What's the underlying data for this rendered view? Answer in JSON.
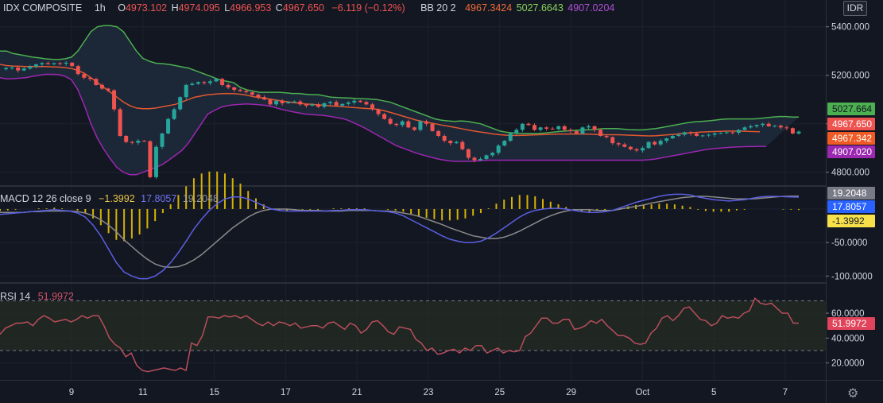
{
  "header": {
    "symbol": "IDX COMPOSITE",
    "interval": "1h",
    "o_label": "O",
    "o_value": "4973.102",
    "h_label": "H",
    "h_value": "4974.095",
    "l_label": "L",
    "l_value": "4966.953",
    "c_label": "C",
    "c_value": "4967.650",
    "change": "−6.119 (−0.12%)",
    "bb_label": "BB 20 2",
    "bb_basis": "4967.3424",
    "bb_upper": "5027.6643",
    "bb_lower": "4907.0204",
    "currency_button": "IDR"
  },
  "macd_legend": {
    "label": "MACD 12 26 close 9",
    "hist": "−1.3992",
    "macd": "17.8057",
    "signal": "19.2048"
  },
  "rsi_legend": {
    "label": "RSI 14",
    "value": "51.9972"
  },
  "price_scale_badges": {
    "upper": "5027.664",
    "close": "4967.650",
    "basis": "4967.342",
    "lower": "4907.020"
  },
  "macd_scale_badges": {
    "signal": "19.2048",
    "macd": "17.8057",
    "hist": "-1.3992"
  },
  "rsi_scale_badge": "51.9972",
  "colors": {
    "background": "#131722",
    "up": "#26a69a",
    "down": "#ef5350",
    "bb_upper": "#4caf50",
    "bb_basis": "#e0582f",
    "bb_lower": "#9c27b0",
    "macd_line": "#5b5fe0",
    "signal_line": "#8a8a8a",
    "hist": "#d4b106",
    "rsi": "#b84e5c"
  },
  "chart_data": [
    {
      "type": "candlestick",
      "title": "IDX COMPOSITE",
      "interval": "1h",
      "x_ticks": [
        "9",
        "11",
        "15",
        "17",
        "21",
        "23",
        "25",
        "29",
        "Oct",
        "5",
        "7"
      ],
      "y_ticks": [
        "4800.000",
        "5000.000",
        "5200.000",
        "5400.000"
      ],
      "ylim": [
        4750,
        5445
      ],
      "close_series": [
        5225,
        5230,
        5232,
        5220,
        5228,
        5236,
        5245,
        5250,
        5246,
        5250,
        5248,
        5252,
        5238,
        5205,
        5190,
        5185,
        5160,
        5145,
        5138,
        5060,
        4950,
        4925,
        4922,
        4930,
        4928,
        4780,
        4905,
        4960,
        5020,
        5060,
        5110,
        5160,
        5165,
        5172,
        5168,
        5175,
        5185,
        5160,
        5150,
        5140,
        5135,
        5130,
        5120,
        5110,
        5100,
        5080,
        5095,
        5085,
        5090,
        5092,
        5080,
        5075,
        5080,
        5070,
        5085,
        5090,
        5075,
        5082,
        5088,
        5095,
        5090,
        5080,
        5060,
        5040,
        5020,
        5000,
        4995,
        5010,
        4985,
        4975,
        5010,
        5000,
        4970,
        4950,
        4930,
        4920,
        4925,
        4895,
        4860,
        4850,
        4855,
        4870,
        4880,
        4910,
        4930,
        4960,
        4975,
        5000,
        4995,
        4975,
        4985,
        4980,
        4978,
        4990,
        4975,
        4970,
        4960,
        4985,
        4990,
        4975,
        4950,
        4945,
        4920,
        4915,
        4905,
        4895,
        4890,
        4900,
        4925,
        4915,
        4930,
        4940,
        4950,
        4955,
        4965,
        4960,
        4950,
        4952,
        4955,
        4960,
        4962,
        4965,
        4963,
        4975,
        4985,
        4990,
        4995,
        5000,
        4990,
        4992,
        4985,
        4982,
        4960,
        4967.65
      ],
      "bb_upper": [
        5300,
        5300,
        5290,
        5285,
        5280,
        5275,
        5272,
        5268,
        5266,
        5265,
        5268,
        5275,
        5300,
        5340,
        5380,
        5400,
        5405,
        5405,
        5400,
        5380,
        5340,
        5300,
        5270,
        5258,
        5250,
        5248,
        5245,
        5240,
        5235,
        5230,
        5220,
        5210,
        5200,
        5190,
        5180,
        5175,
        5170,
        5150,
        5140,
        5135,
        5130,
        5130,
        5130,
        5130,
        5128,
        5125,
        5125,
        5122,
        5120,
        5120,
        5115,
        5110,
        5108,
        5107,
        5106,
        5104,
        5103,
        5102,
        5100,
        5095,
        5090,
        5080,
        5070,
        5060,
        5050,
        5040,
        5030,
        5020,
        5015,
        5012,
        5010,
        5012,
        5010,
        5005,
        5000,
        4990,
        4980,
        4970,
        4965,
        4962,
        4960,
        4960,
        4960,
        4960,
        4962,
        4965,
        4968,
        4970,
        4972,
        4974,
        4975,
        4976,
        4978,
        4980,
        4980,
        4980,
        4978,
        4976,
        4975,
        4975,
        4978,
        4980,
        4985,
        4990,
        4995,
        5000,
        5005,
        5008,
        5010,
        5012,
        5015,
        5018,
        5020,
        5020,
        5020,
        5020,
        5020,
        5022,
        5025,
        5028,
        5030,
        5030,
        5028,
        5027.66
      ],
      "bb_basis": [
        5245,
        5240,
        5238,
        5237,
        5236,
        5236,
        5236,
        5236,
        5235,
        5234,
        5232,
        5228,
        5220,
        5208,
        5190,
        5170,
        5150,
        5130,
        5110,
        5090,
        5075,
        5065,
        5062,
        5062,
        5065,
        5070,
        5075,
        5080,
        5090,
        5100,
        5110,
        5115,
        5120,
        5122,
        5124,
        5125,
        5124,
        5122,
        5118,
        5112,
        5108,
        5104,
        5100,
        5096,
        5092,
        5088,
        5085,
        5082,
        5080,
        5078,
        5076,
        5074,
        5072,
        5070,
        5068,
        5066,
        5064,
        5062,
        5060,
        5055,
        5048,
        5040,
        5032,
        5024,
        5016,
        5010,
        5005,
        5000,
        4995,
        4990,
        4985,
        4980,
        4975,
        4970,
        4966,
        4962,
        4958,
        4955,
        4953,
        4952,
        4952,
        4953,
        4954,
        4955,
        4956,
        4957,
        4958,
        4958,
        4958,
        4958,
        4958,
        4957,
        4956,
        4955,
        4955,
        4955,
        4954,
        4953,
        4952,
        4951,
        4950,
        4951,
        4953,
        4955,
        4957,
        4960,
        4962,
        4964,
        4966,
        4967,
        4968,
        4969,
        4970,
        4970,
        4970,
        4969,
        4968,
        4967.34
      ],
      "bb_lower": [
        5190,
        5185,
        5186,
        5188,
        5190,
        5196,
        5200,
        5204,
        5204,
        5203,
        5196,
        5182,
        5140,
        5076,
        5000,
        4940,
        4895,
        4855,
        4820,
        4800,
        4790,
        4790,
        4800,
        4810,
        4820,
        4832,
        4850,
        4870,
        4890,
        4920,
        4960,
        5000,
        5040,
        5055,
        5068,
        5075,
        5078,
        5080,
        5082,
        5080,
        5078,
        5076,
        5070,
        5062,
        5056,
        5050,
        5045,
        5040,
        5038,
        5036,
        5034,
        5030,
        5025,
        5020,
        5010,
        4998,
        4985,
        4970,
        4955,
        4940,
        4925,
        4910,
        4900,
        4890,
        4880,
        4872,
        4865,
        4858,
        4852,
        4848,
        4845,
        4845,
        4845,
        4846,
        4848,
        4850,
        4850,
        4850,
        4850,
        4850,
        4850,
        4850,
        4850,
        4850,
        4850,
        4850,
        4850,
        4850,
        4850,
        4850,
        4850,
        4850,
        4850,
        4850,
        4850,
        4850,
        4850,
        4850,
        4850,
        4850,
        4852,
        4855,
        4860,
        4865,
        4870,
        4875,
        4880,
        4885,
        4890,
        4895,
        4898,
        4900,
        4902,
        4904,
        4905,
        4906,
        4906,
        4907,
        4907.02
      ]
    },
    {
      "type": "line",
      "title": "MACD 12 26 close 9",
      "y_ticks": [
        "-100.0000",
        "-50.0000"
      ],
      "ylim": [
        -108,
        32
      ],
      "macd": [
        -8,
        -7,
        -6,
        -5,
        -4,
        -3,
        -2,
        -1,
        -2,
        -3,
        -6,
        -12,
        -24,
        -40,
        -60,
        -80,
        -94,
        -100,
        -104,
        -104,
        -100,
        -92,
        -80,
        -65,
        -48,
        -30,
        -15,
        -2,
        8,
        15,
        18,
        18,
        15,
        10,
        5,
        0,
        -2,
        -3,
        -3,
        -3,
        -3,
        -3,
        -3,
        -2,
        -2,
        -1,
        -1,
        -1,
        -2,
        -3,
        -4,
        -6,
        -10,
        -16,
        -22,
        -28,
        -34,
        -40,
        -45,
        -48,
        -50,
        -50,
        -48,
        -43,
        -36,
        -28,
        -20,
        -12,
        -6,
        -2,
        0,
        1,
        1,
        0,
        -2,
        -4,
        -5,
        -5,
        -4,
        -2,
        2,
        6,
        10,
        13,
        16,
        19,
        21,
        22,
        22,
        21,
        18,
        16,
        14,
        13,
        12,
        13,
        14,
        16,
        18,
        19,
        19,
        18.5,
        18,
        17.8
      ],
      "signal": [
        -5,
        -5,
        -5,
        -5,
        -4,
        -4,
        -3,
        -3,
        -3,
        -3,
        -4,
        -6,
        -10,
        -16,
        -24,
        -34,
        -46,
        -56,
        -66,
        -75,
        -82,
        -86,
        -87,
        -86,
        -82,
        -76,
        -68,
        -58,
        -48,
        -38,
        -28,
        -20,
        -12,
        -6,
        -2,
        0,
        0,
        0,
        -1,
        -2,
        -2,
        -2,
        -3,
        -3,
        -3,
        -2,
        -2,
        -2,
        -2,
        -3,
        -3,
        -4,
        -6,
        -8,
        -11,
        -15,
        -19,
        -23,
        -28,
        -32,
        -36,
        -40,
        -42,
        -44,
        -44,
        -42,
        -38,
        -33,
        -27,
        -21,
        -15,
        -10,
        -6,
        -3,
        -1,
        -1,
        -1,
        -2,
        -2,
        -2,
        0,
        2,
        4,
        6,
        9,
        11,
        13,
        15,
        17,
        18,
        19,
        19,
        18,
        17,
        16,
        15,
        15,
        15,
        16,
        17,
        18,
        19,
        19.2,
        19.2048
      ],
      "hist": [
        -3,
        -2,
        -1,
        0,
        0,
        1,
        1,
        2,
        1,
        0,
        -2,
        -6,
        -14,
        -24,
        -36,
        -46,
        -48,
        -44,
        -38,
        -29,
        -18,
        -6,
        7,
        21,
        34,
        46,
        53,
        56,
        56,
        53,
        46,
        38,
        27,
        16,
        7,
        0,
        -2,
        -3,
        -2,
        -1,
        -1,
        -1,
        0,
        1,
        1,
        1,
        1,
        1,
        0,
        0,
        -1,
        -2,
        -4,
        -8,
        -11,
        -13,
        -15,
        -17,
        -17,
        -16,
        -14,
        -10,
        -6,
        1,
        8,
        14,
        18,
        21,
        21,
        19,
        15,
        11,
        7,
        3,
        -1,
        -3,
        -4,
        -3,
        -2,
        0,
        2,
        4,
        6,
        7,
        7,
        8,
        8,
        7,
        5,
        3,
        -1,
        -3,
        -4,
        -4,
        -4,
        -2,
        -1,
        0,
        0,
        0,
        0,
        -0.7,
        -1,
        -1.4
      ]
    },
    {
      "type": "line",
      "title": "RSI 14",
      "y_ticks": [
        "20.0000",
        "40.0000",
        "60.0000"
      ],
      "ylim": [
        7,
        83
      ],
      "band": [
        30,
        70
      ],
      "rsi": [
        43,
        48,
        50,
        52,
        52,
        53,
        50,
        55,
        58,
        56,
        53,
        54,
        55,
        53,
        55,
        58,
        56,
        58,
        58,
        50,
        40,
        35,
        32,
        25,
        28,
        18,
        14,
        13,
        14,
        15,
        16,
        15,
        14,
        16,
        14,
        36,
        34,
        42,
        57,
        57,
        56,
        58,
        57,
        58,
        56,
        58,
        55,
        52,
        50,
        53,
        50,
        53,
        52,
        50,
        52,
        48,
        49,
        50,
        50,
        48,
        52,
        53,
        50,
        47,
        52,
        50,
        44,
        47,
        53,
        54,
        50,
        45,
        43,
        49,
        48,
        47,
        39,
        36,
        30,
        32,
        27,
        28,
        30,
        31,
        28,
        32,
        30,
        34,
        34,
        28,
        30,
        32,
        28,
        30,
        29,
        30,
        41,
        44,
        50,
        56,
        56,
        52,
        52,
        55,
        55,
        47,
        48,
        50,
        54,
        52,
        55,
        50,
        46,
        42,
        42,
        40,
        36,
        35,
        36,
        44,
        48,
        56,
        58,
        54,
        58,
        64,
        65,
        60,
        55,
        54,
        50,
        52,
        58,
        56,
        57,
        56,
        60,
        62,
        72,
        68,
        67,
        68,
        64,
        60,
        60,
        52,
        51.9972
      ],
      "latest": 51.9972
    }
  ]
}
